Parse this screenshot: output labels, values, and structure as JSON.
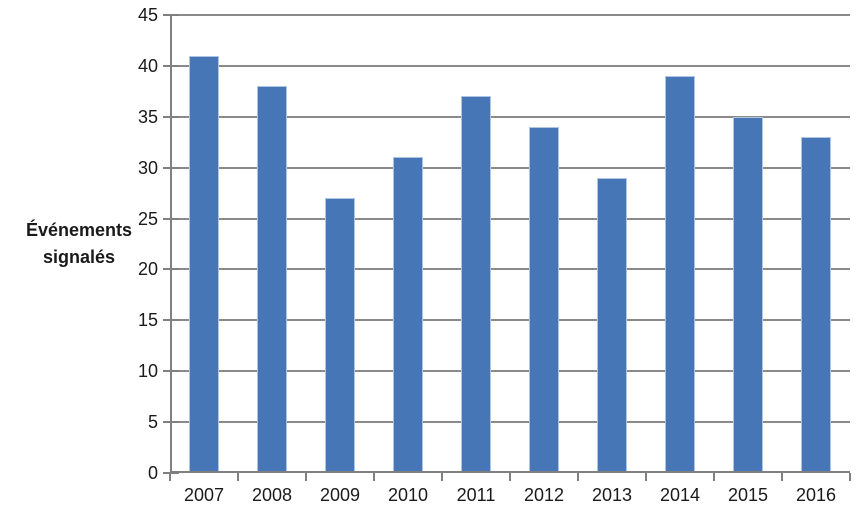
{
  "chart_data": {
    "type": "bar",
    "title": "",
    "categories": [
      "2007",
      "2008",
      "2009",
      "2010",
      "2011",
      "2012",
      "2013",
      "2014",
      "2015",
      "2016"
    ],
    "values": [
      41,
      38,
      27,
      31,
      37,
      34,
      29,
      39,
      35,
      33
    ],
    "xlabel": "",
    "ylabel": "Événements\nsignalés",
    "ylim": [
      0,
      45
    ],
    "ytick_step": 5,
    "yticks": [
      0,
      5,
      10,
      15,
      20,
      25,
      30,
      35,
      40,
      45
    ],
    "grid": true,
    "legend": false,
    "colors": {
      "bar_fill": "#4676B5",
      "bar_border": "#AEC6E2",
      "gridline": "#8A8A8A",
      "axis": "#808080",
      "tick_text": "#1A1A1A"
    }
  }
}
